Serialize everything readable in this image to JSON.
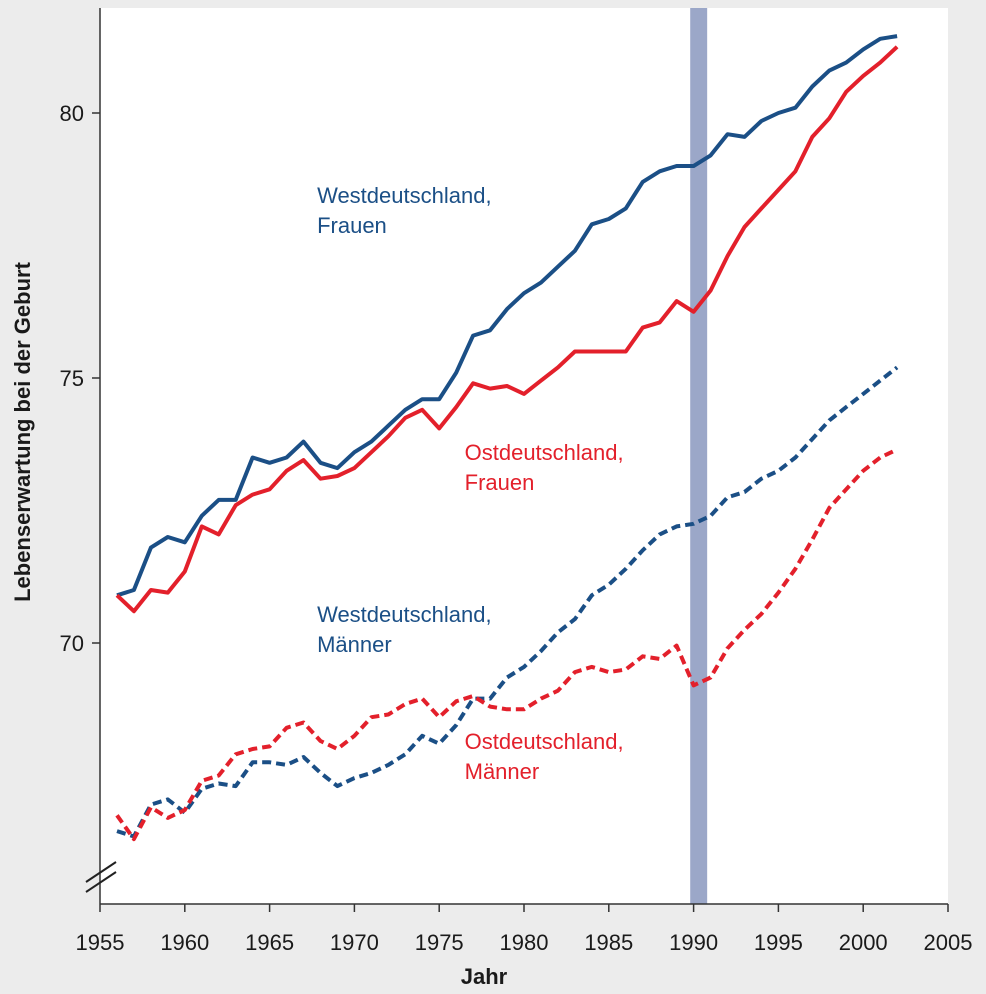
{
  "chart_data": {
    "type": "line",
    "xlabel": "Jahr",
    "ylabel": "Lebenserwartung bei der Geburt",
    "xlim": [
      1955,
      2005
    ],
    "ylim": [
      65.4,
      82
    ],
    "xticks": [
      "1955",
      "1960",
      "1965",
      "1970",
      "1975",
      "1980",
      "1985",
      "1990",
      "1995",
      "2000",
      "2005"
    ],
    "yticks": [
      "70",
      "75",
      "80"
    ],
    "y_axis_break": true,
    "highlight_band": {
      "from": 1989.8,
      "to": 1990.8,
      "color": "#9ba7c8"
    },
    "colors": {
      "west": "#1b4f86",
      "ost": "#e3202b"
    },
    "x": [
      1956,
      1957,
      1958,
      1959,
      1960,
      1961,
      1962,
      1963,
      1964,
      1965,
      1966,
      1967,
      1968,
      1969,
      1970,
      1971,
      1972,
      1973,
      1974,
      1975,
      1976,
      1977,
      1978,
      1979,
      1980,
      1981,
      1982,
      1983,
      1984,
      1985,
      1986,
      1987,
      1988,
      1989,
      1990,
      1991,
      1992,
      1993,
      1994,
      1995,
      1996,
      1997,
      1998,
      1999,
      2000,
      2001,
      2002
    ],
    "series": [
      {
        "key": "west_frauen",
        "name": "Westdeutschland, Frauen",
        "style": "solid",
        "color": "#1b4f86",
        "values": [
          70.9,
          71.0,
          71.8,
          72.0,
          71.9,
          72.4,
          72.7,
          72.7,
          73.5,
          73.4,
          73.5,
          73.8,
          73.4,
          73.3,
          73.6,
          73.8,
          74.1,
          74.4,
          74.6,
          74.6,
          75.1,
          75.8,
          75.9,
          76.3,
          76.6,
          76.8,
          77.1,
          77.4,
          77.9,
          78.0,
          78.2,
          78.7,
          78.9,
          79.0,
          79.0,
          79.2,
          79.6,
          79.55,
          79.85,
          80.0,
          80.1,
          80.5,
          80.8,
          80.95,
          81.2,
          81.4,
          81.45
        ]
      },
      {
        "key": "ost_frauen",
        "name": "Ostdeutschland, Frauen",
        "style": "solid",
        "color": "#e3202b",
        "values": [
          70.9,
          70.6,
          71.0,
          70.95,
          71.35,
          72.2,
          72.05,
          72.6,
          72.8,
          72.9,
          73.25,
          73.45,
          73.1,
          73.15,
          73.3,
          73.6,
          73.9,
          74.25,
          74.4,
          74.05,
          74.45,
          74.9,
          74.8,
          74.85,
          74.7,
          74.95,
          75.2,
          75.5,
          75.5,
          75.5,
          75.5,
          75.95,
          76.05,
          76.45,
          76.25,
          76.65,
          77.3,
          77.85,
          78.2,
          78.55,
          78.9,
          79.55,
          79.9,
          80.4,
          80.7,
          80.95,
          81.25
        ]
      },
      {
        "key": "west_maenner",
        "name": "Westdeutschland, Männer",
        "style": "dashed",
        "color": "#1b4f86",
        "values": [
          66.45,
          66.35,
          66.95,
          67.05,
          66.8,
          67.25,
          67.35,
          67.3,
          67.75,
          67.75,
          67.7,
          67.85,
          67.55,
          67.3,
          67.45,
          67.55,
          67.7,
          67.9,
          68.25,
          68.1,
          68.45,
          68.95,
          68.95,
          69.35,
          69.55,
          69.85,
          70.2,
          70.45,
          70.9,
          71.1,
          71.4,
          71.75,
          72.05,
          72.2,
          72.25,
          72.4,
          72.75,
          72.85,
          73.1,
          73.25,
          73.5,
          73.85,
          74.2,
          74.45,
          74.7,
          74.95,
          75.2
        ]
      },
      {
        "key": "ost_maenner",
        "name": "Ostdeutschland, Männer",
        "style": "dashed",
        "color": "#e3202b",
        "values": [
          66.75,
          66.3,
          66.9,
          66.7,
          66.85,
          67.4,
          67.5,
          67.9,
          68.0,
          68.05,
          68.4,
          68.5,
          68.15,
          68.0,
          68.25,
          68.6,
          68.65,
          68.85,
          68.95,
          68.6,
          68.9,
          69.0,
          68.8,
          68.75,
          68.75,
          68.95,
          69.1,
          69.45,
          69.55,
          69.45,
          69.5,
          69.75,
          69.7,
          69.95,
          69.2,
          69.35,
          69.9,
          70.25,
          70.55,
          70.95,
          71.4,
          71.95,
          72.55,
          72.9,
          73.25,
          73.5,
          73.65
        ]
      }
    ],
    "annotations": [
      {
        "key": "wf",
        "lines": [
          "Westdeutschland,",
          "Frauen"
        ],
        "color": "#1b4f86",
        "x": 1967.8,
        "y": 78.3
      },
      {
        "key": "of",
        "lines": [
          "Ostdeutschland,",
          "Frauen"
        ],
        "color": "#e3202b",
        "x": 1976.5,
        "y": 73.45
      },
      {
        "key": "wm",
        "lines": [
          "Westdeutschland,",
          "Männer"
        ],
        "color": "#1b4f86",
        "x": 1967.8,
        "y": 70.4
      },
      {
        "key": "om",
        "lines": [
          "Ostdeutschland,",
          "Männer"
        ],
        "color": "#e3202b",
        "x": 1976.5,
        "y": 68.0
      }
    ]
  }
}
